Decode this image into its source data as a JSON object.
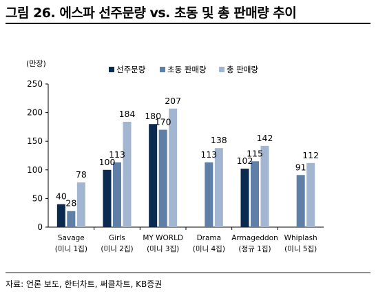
{
  "header": {
    "title": "그림 26. 에스파 선주문량 vs. 초동 및 총 판매량 추이"
  },
  "footer": {
    "source": "자료: 언론 보도, 한터차트, 써클차트, KB증권"
  },
  "colors": {
    "preorder": "#0b2a4f",
    "first_week": "#5f7fa6",
    "total": "#a3b6d1"
  },
  "chart_data": {
    "type": "bar",
    "unit_label": "(만장)",
    "ylim": [
      0,
      250
    ],
    "yticks": [
      0,
      50,
      100,
      150,
      200,
      250
    ],
    "categories": [
      {
        "name": "Savage",
        "sub": "(미니 1집)"
      },
      {
        "name": "Girls",
        "sub": "(미니 2집)"
      },
      {
        "name": "MY WORLD",
        "sub": "(미니 3집)"
      },
      {
        "name": "Drama",
        "sub": "(미니 4집)"
      },
      {
        "name": "Armageddon",
        "sub": "(정규 1집)"
      },
      {
        "name": "Whiplash",
        "sub": "(미니 5집)"
      }
    ],
    "series": [
      {
        "name": "선주문량",
        "values": [
          40,
          100,
          180,
          null,
          102,
          null
        ]
      },
      {
        "name": "초동 판매량",
        "values": [
          28,
          113,
          170,
          113,
          115,
          91
        ]
      },
      {
        "name": "총 판매량",
        "values": [
          78,
          184,
          207,
          138,
          142,
          112
        ]
      }
    ],
    "legend": "top"
  }
}
